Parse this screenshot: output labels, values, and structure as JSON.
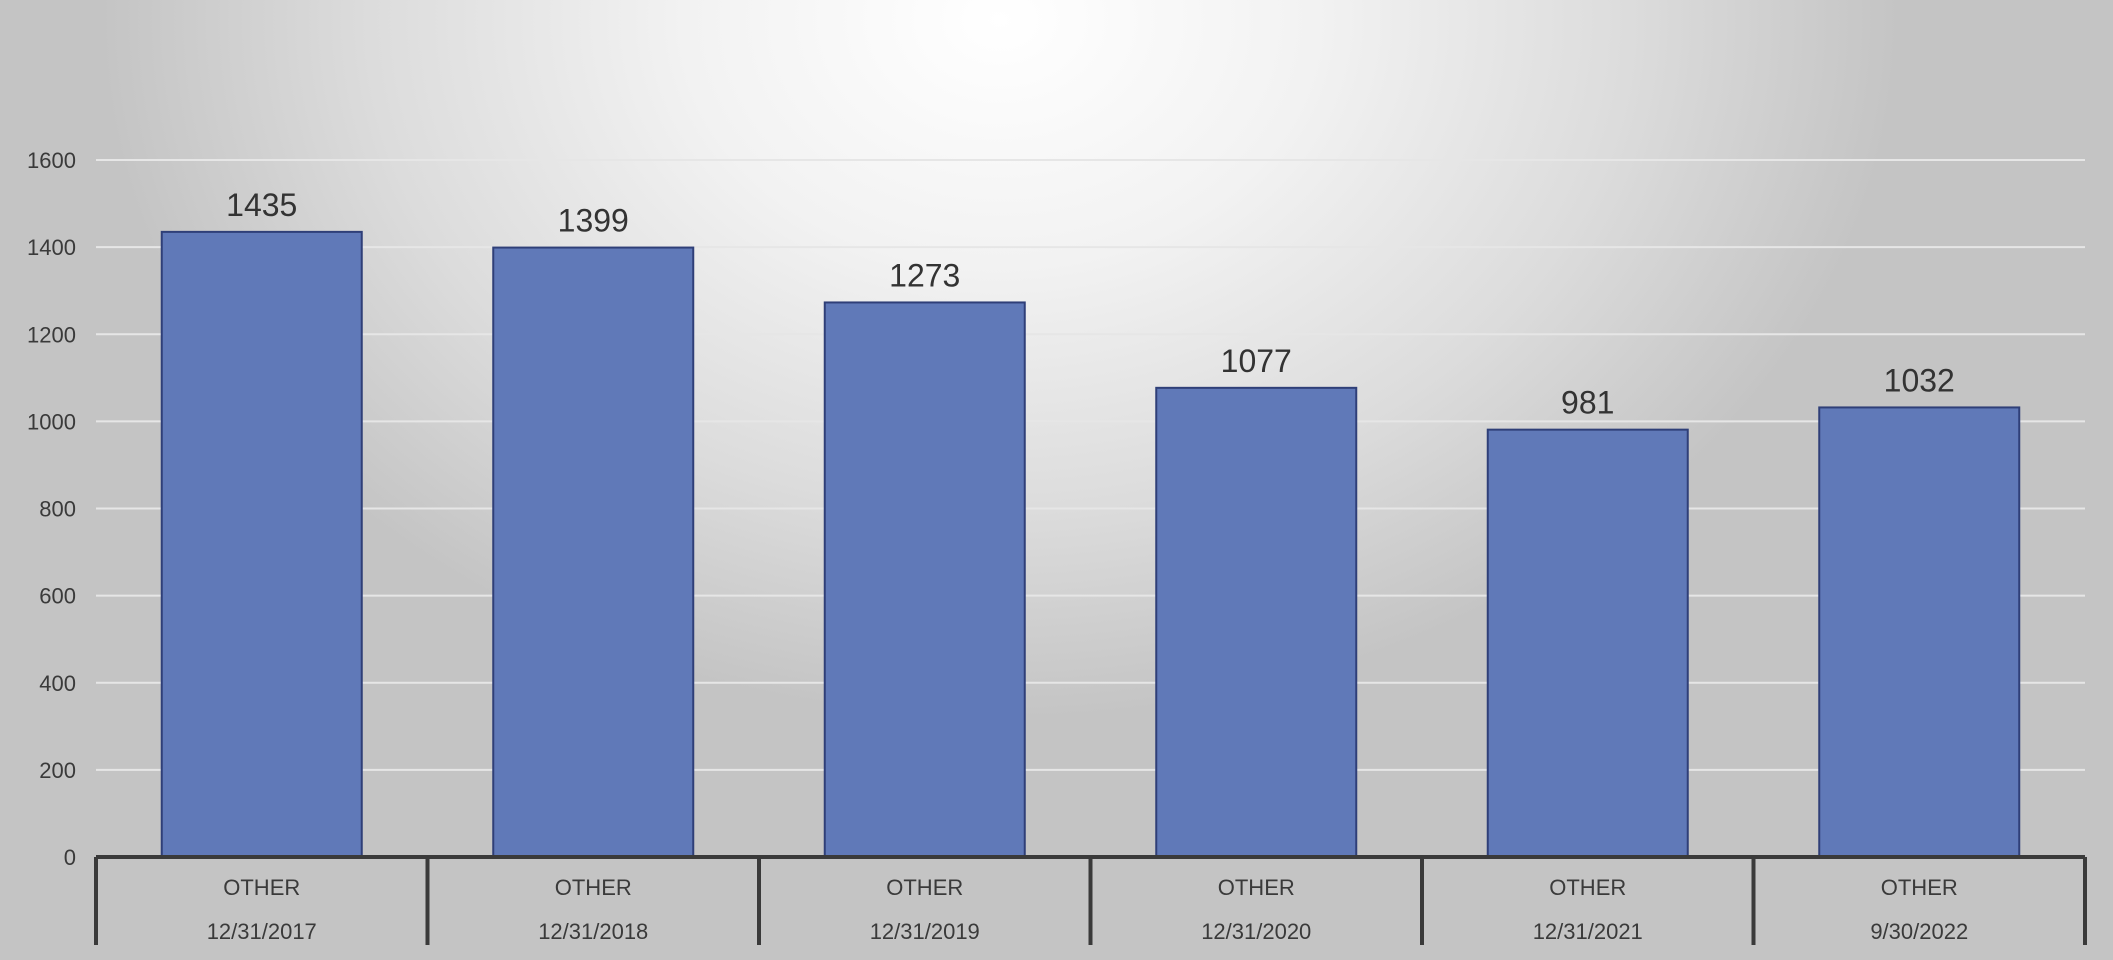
{
  "chart_data": {
    "type": "bar",
    "title": "",
    "xlabel": "",
    "ylabel": "",
    "ylim": [
      0,
      1600
    ],
    "y_ticks": [
      0,
      200,
      400,
      600,
      800,
      1000,
      1200,
      1400,
      1600
    ],
    "grid": true,
    "legend": "none",
    "categories": [
      {
        "group": "OTHER",
        "date": "12/31/2017"
      },
      {
        "group": "OTHER",
        "date": "12/31/2018"
      },
      {
        "group": "OTHER",
        "date": "12/31/2019"
      },
      {
        "group": "OTHER",
        "date": "12/31/2020"
      },
      {
        "group": "OTHER",
        "date": "12/31/2021"
      },
      {
        "group": "OTHER",
        "date": "9/30/2022"
      }
    ],
    "values": [
      1435,
      1399,
      1273,
      1077,
      981,
      1032
    ],
    "colors": {
      "bar": "#6079b8",
      "bar_stroke": "#2f3f78",
      "gridline": "#e6e6e6",
      "axis": "#3a3a3a"
    }
  }
}
